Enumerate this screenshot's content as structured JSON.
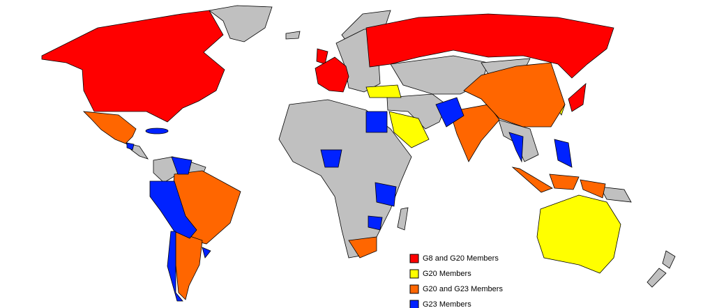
{
  "legend": {
    "items": [
      {
        "label": "G8 and G20 Members",
        "color": "#ff0000"
      },
      {
        "label": "G20 Members",
        "color": "#ffff00"
      },
      {
        "label": "G20 and G23 Members",
        "color": "#ff6600"
      },
      {
        "label": "G23 Members",
        "color": "#0022ff"
      }
    ]
  }
}
